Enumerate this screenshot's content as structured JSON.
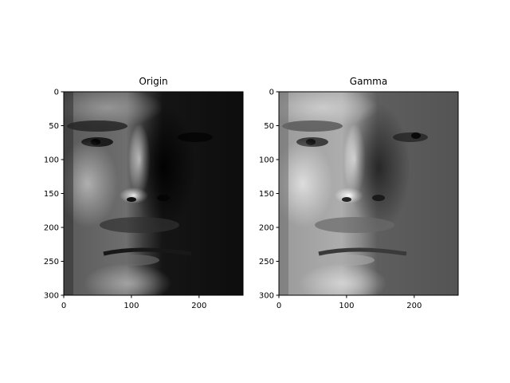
{
  "chart_data": [
    {
      "type": "image",
      "title": "Origin",
      "xlabel": "",
      "ylabel": "",
      "xlim": [
        0,
        265
      ],
      "ylim": [
        300,
        0
      ],
      "xticks": [
        0,
        100,
        200
      ],
      "yticks": [
        0,
        50,
        100,
        150,
        200,
        250,
        300
      ],
      "image_content": "grayscale face photograph, left half lit, right half in shadow"
    },
    {
      "type": "image",
      "title": "Gamma",
      "xlabel": "",
      "ylabel": "",
      "xlim": [
        0,
        265
      ],
      "ylim": [
        300,
        0
      ],
      "xticks": [
        0,
        100,
        200
      ],
      "yticks": [
        0,
        50,
        100,
        150,
        200,
        250,
        300
      ],
      "image_content": "same face photograph after gamma correction, shadows brightened"
    }
  ]
}
